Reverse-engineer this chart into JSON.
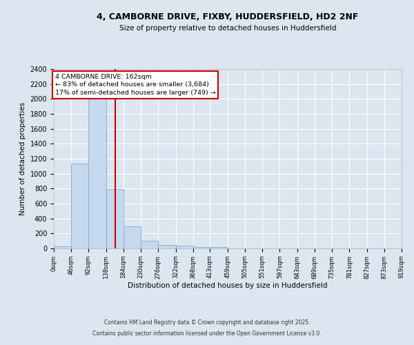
{
  "title1": "4, CAMBORNE DRIVE, FIXBY, HUDDERSFIELD, HD2 2NF",
  "title2": "Size of property relative to detached houses in Huddersfield",
  "xlabel": "Distribution of detached houses by size in Huddersfield",
  "ylabel": "Number of detached properties",
  "bin_edges": [
    0,
    46,
    92,
    138,
    184,
    230,
    276,
    322,
    368,
    413,
    459,
    505,
    551,
    597,
    643,
    689,
    735,
    781,
    827,
    873,
    919
  ],
  "bin_counts": [
    30,
    1140,
    2000,
    790,
    300,
    105,
    45,
    40,
    20,
    20,
    0,
    0,
    0,
    0,
    0,
    0,
    0,
    0,
    0,
    0
  ],
  "bar_color": "#c5d8ee",
  "bar_edge_color": "#7aadd4",
  "red_line_x": 162,
  "annotation_text": "4 CAMBORNE DRIVE: 162sqm\n← 83% of detached houses are smaller (3,684)\n17% of semi-detached houses are larger (749) →",
  "annotation_box_color": "#ffffff",
  "annotation_box_edge_color": "#cc0000",
  "ylim": [
    0,
    2400
  ],
  "yticks": [
    0,
    200,
    400,
    600,
    800,
    1000,
    1200,
    1400,
    1600,
    1800,
    2000,
    2200,
    2400
  ],
  "bg_color": "#dce6f0",
  "fig_bg_color": "#dce6f0",
  "grid_color": "#ffffff",
  "footer1": "Contains HM Land Registry data © Crown copyright and database right 2025.",
  "footer2": "Contains public sector information licensed under the Open Government Licence v3.0.",
  "tick_labels": [
    "0sqm",
    "46sqm",
    "92sqm",
    "138sqm",
    "184sqm",
    "230sqm",
    "276sqm",
    "322sqm",
    "368sqm",
    "413sqm",
    "459sqm",
    "505sqm",
    "551sqm",
    "597sqm",
    "643sqm",
    "689sqm",
    "735sqm",
    "781sqm",
    "827sqm",
    "873sqm",
    "919sqm"
  ]
}
